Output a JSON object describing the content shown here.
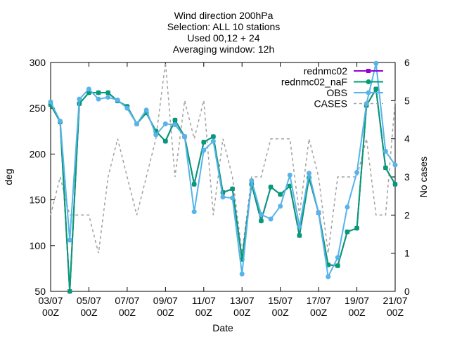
{
  "chart_data": {
    "type": "line",
    "title_lines": [
      "Wind direction 200hPa",
      "Selection: ALL      10 stations",
      "Used 00,12 + 24",
      "Averaging window: 12h"
    ],
    "xlabel": "Date",
    "ylabel": "deg",
    "y2label": "No cases",
    "x_range": [
      0,
      36
    ],
    "x_ticks": [
      {
        "x": 0,
        "line1": "03/07",
        "line2": "00Z"
      },
      {
        "x": 4,
        "line1": "05/07",
        "line2": "00Z"
      },
      {
        "x": 8,
        "line1": "07/07",
        "line2": "00Z"
      },
      {
        "x": 12,
        "line1": "09/07",
        "line2": "00Z"
      },
      {
        "x": 16,
        "line1": "11/07",
        "line2": "00Z"
      },
      {
        "x": 20,
        "line1": "13/07",
        "line2": "00Z"
      },
      {
        "x": 24,
        "line1": "15/07",
        "line2": "00Z"
      },
      {
        "x": 28,
        "line1": "17/07",
        "line2": "00Z"
      },
      {
        "x": 32,
        "line1": "19/07",
        "line2": "00Z"
      },
      {
        "x": 36,
        "line1": "21/07",
        "line2": "00Z"
      }
    ],
    "ylim": [
      50,
      300
    ],
    "y_ticks": [
      50,
      100,
      150,
      200,
      250,
      300
    ],
    "y2lim": [
      0,
      6
    ],
    "y2_ticks": [
      0,
      1,
      2,
      3,
      4,
      5,
      6
    ],
    "legend_position": "top-right",
    "series": [
      {
        "name": "rednmc02",
        "color": "#9400d3",
        "axis": "y",
        "marker": "square",
        "values": [
          254,
          235,
          50,
          255,
          267,
          267,
          267,
          258,
          252,
          233,
          245,
          225,
          214,
          237,
          219,
          167,
          213,
          219,
          158,
          162,
          85,
          167,
          127,
          164,
          156,
          165,
          111,
          174,
          136,
          79,
          78,
          115,
          119,
          253,
          271,
          185,
          167
        ]
      },
      {
        "name": "rednmc02_naF",
        "color": "#009e73",
        "axis": "y",
        "marker": "circle",
        "values": [
          254,
          235,
          50,
          255,
          267,
          267,
          267,
          258,
          252,
          233,
          245,
          225,
          214,
          237,
          219,
          167,
          213,
          219,
          158,
          162,
          85,
          167,
          127,
          164,
          156,
          165,
          111,
          174,
          136,
          79,
          78,
          115,
          119,
          253,
          271,
          185,
          167
        ]
      },
      {
        "name": "OBS",
        "color": "#56b4e9",
        "axis": "y",
        "marker": "circle",
        "values": [
          257,
          236,
          106,
          260,
          271,
          260,
          262,
          259,
          250,
          233,
          248,
          221,
          233,
          232,
          219,
          137,
          204,
          214,
          153,
          152,
          69,
          171,
          134,
          129,
          143,
          177,
          121,
          179,
          136,
          66,
          87,
          142,
          180,
          255,
          299,
          203,
          188
        ]
      },
      {
        "name": "CASES",
        "color": "#a0a0a0",
        "axis": "y2",
        "dashed": true,
        "values": [
          2,
          3,
          2,
          2,
          2,
          1,
          3,
          4,
          3,
          2,
          3,
          4,
          6,
          3,
          5,
          4,
          5,
          2,
          4,
          3,
          1,
          3,
          3,
          4,
          4,
          4,
          2,
          4,
          3,
          1,
          3,
          3,
          3,
          4,
          2,
          2,
          5
        ]
      }
    ]
  }
}
